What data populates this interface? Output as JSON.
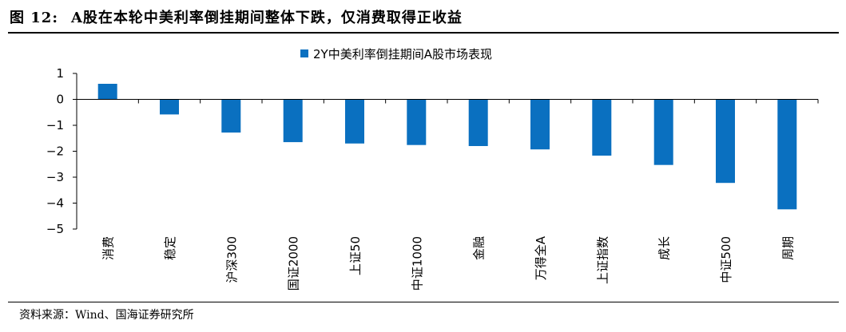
{
  "figure": {
    "number": "图 12:",
    "title": "A股在本轮中美利率倒挂期间整体下跌，仅消费取得正收益",
    "source": "资料来源：Wind、国海证券研究所"
  },
  "chart_data": {
    "type": "bar",
    "categories": [
      "消费",
      "稳定",
      "沪深300",
      "国证2000",
      "上证50",
      "中证1000",
      "金融",
      "万得全A",
      "上证指数",
      "成长",
      "中证500",
      "周期"
    ],
    "series": [
      {
        "name": "2Y中美利率倒挂期间A股市场表现",
        "values": [
          0.6,
          -0.58,
          -1.28,
          -1.65,
          -1.7,
          -1.76,
          -1.8,
          -1.93,
          -2.17,
          -2.53,
          -3.22,
          -4.24
        ],
        "color": "#0a70c0"
      }
    ],
    "ylim": [
      -5,
      1
    ],
    "yticks": [
      "1",
      "0",
      "−1",
      "−2",
      "−3",
      "−4",
      "−5"
    ],
    "legend_position": "top-center",
    "grid": false
  }
}
